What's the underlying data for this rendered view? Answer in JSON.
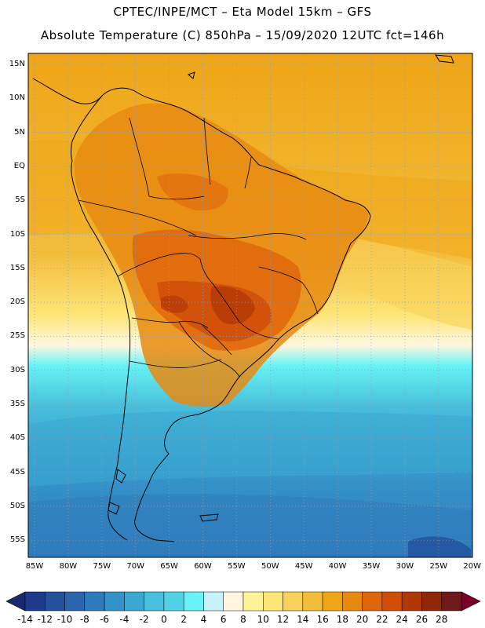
{
  "header": {
    "line1": "CPTEC/INPE/MCT –  Eta Model 15km – GFS",
    "line2": "Absolute Temperature (C) 850hPa – 15/09/2020 12UTC fct=146h"
  },
  "map": {
    "lat_labels": [
      "15N",
      "10N",
      "5N",
      "EQ",
      "5S",
      "10S",
      "15S",
      "20S",
      "25S",
      "30S",
      "35S",
      "40S",
      "45S",
      "50S",
      "55S"
    ],
    "lon_labels": [
      "85W",
      "80W",
      "75W",
      "70W",
      "65W",
      "60W",
      "55W",
      "50W",
      "45W",
      "40W",
      "35W",
      "30W",
      "25W",
      "20W"
    ],
    "features": [
      "temperature-field",
      "coastlines",
      "country-borders",
      "graticule"
    ]
  },
  "colorbar": {
    "labels": [
      "-14",
      "-12",
      "-10",
      "-8",
      "-6",
      "-4",
      "-2",
      "0",
      "2",
      "4",
      "6",
      "8",
      "10",
      "12",
      "14",
      "16",
      "18",
      "20",
      "22",
      "24",
      "26",
      "28"
    ],
    "colors": [
      "#1e3a8a",
      "#24509c",
      "#2a66ad",
      "#2f7cbc",
      "#3592c8",
      "#3aa8d2",
      "#48bfdc",
      "#52d2e6",
      "#66f2f6",
      "#c8f2fb",
      "#fff7e0",
      "#fff39a",
      "#fde678",
      "#f8d25a",
      "#f3bd3c",
      "#efa516",
      "#e88a10",
      "#e0660c",
      "#d04e08",
      "#b03806",
      "#8f2606",
      "#6e1a1a"
    ],
    "low_cap_color": "#1a2a6e",
    "high_cap_color": "#7a0028"
  }
}
